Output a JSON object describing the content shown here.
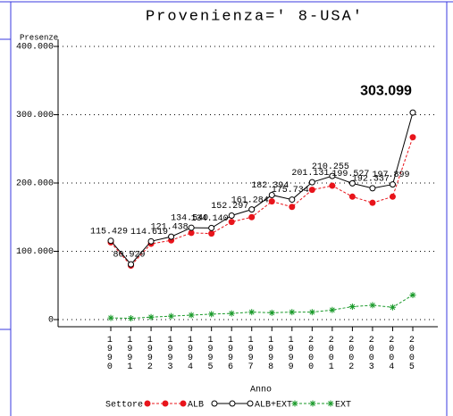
{
  "chart_data": {
    "type": "line",
    "title": "Provenienza=' 8-USA'",
    "y_label": "Presenze",
    "x_label": "Anno",
    "legend_title": "Settore",
    "categories": [
      "1990",
      "1991",
      "1992",
      "1993",
      "1994",
      "1995",
      "1996",
      "1997",
      "1998",
      "1999",
      "2000",
      "2001",
      "2002",
      "2003",
      "2004",
      "2005"
    ],
    "ylim": [
      0,
      400000
    ],
    "yticks": [
      {
        "value": 0,
        "label": "0"
      },
      {
        "value": 100000,
        "label": "100.000"
      },
      {
        "value": 200000,
        "label": "200.000"
      },
      {
        "value": 300000,
        "label": "300.000"
      },
      {
        "value": 400000,
        "label": "400.000"
      }
    ],
    "grid": true,
    "series": [
      {
        "name": "ALB",
        "color": "#e8141b",
        "marker": "dot",
        "values": [
          113000,
          79000,
          111000,
          116000,
          127000,
          126000,
          143000,
          150000,
          173000,
          165000,
          190000,
          196000,
          180000,
          171000,
          180000,
          267000
        ]
      },
      {
        "name": "ALB+EXT",
        "color": "#000000",
        "marker": "circle",
        "values": [
          115429,
          80929,
          114619,
          121438,
          134540,
          134140,
          152297,
          161284,
          182394,
          175734,
          201131,
          210255,
          199527,
          192337,
          197899,
          303099
        ],
        "value_labels": [
          "115.429",
          "80.929",
          "114.619",
          "121.438",
          "134.540",
          "134.140",
          "152.297",
          "161.284",
          "182.394",
          "175.734",
          "201.131",
          "210.255",
          "199.527",
          "192.337",
          "197.899",
          "303.099"
        ]
      },
      {
        "name": "EXT",
        "color": "#1a9a2a",
        "marker": "star",
        "values": [
          2400,
          1900,
          3600,
          5000,
          6500,
          8000,
          9000,
          11000,
          10000,
          11000,
          11000,
          14000,
          19000,
          21000,
          18000,
          36000
        ]
      }
    ]
  }
}
